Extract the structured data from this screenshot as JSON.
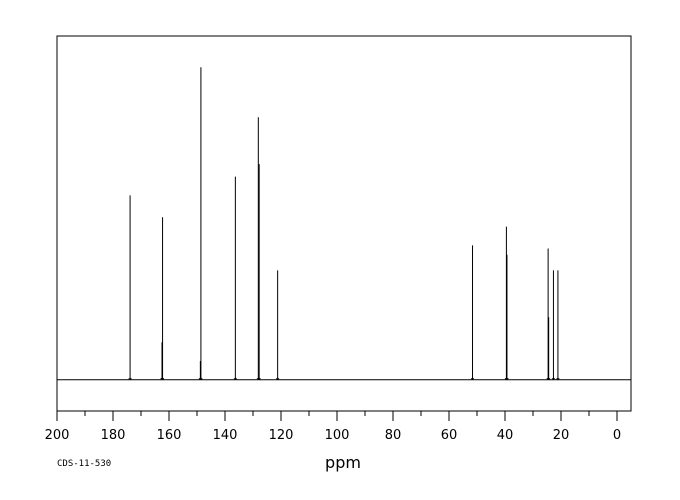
{
  "chart_data": {
    "type": "line",
    "title": "",
    "xlabel": "ppm",
    "ylabel": "",
    "xlim": [
      200,
      -5
    ],
    "ylim": [
      -0.1,
      1.1
    ],
    "x_reversed": true,
    "grid": false,
    "baseline_y": 0,
    "x_ticks": [
      200,
      180,
      160,
      140,
      120,
      100,
      80,
      60,
      40,
      20,
      0
    ],
    "x_tick_labels": [
      "200",
      "180",
      "160",
      "140",
      "120",
      "100",
      "80",
      "60",
      "40",
      "20",
      "0"
    ],
    "x_minor_step": 10,
    "peaks": [
      {
        "ppm": 173.9,
        "intensity": 0.59
      },
      {
        "ppm": 162.5,
        "intensity": 0.12
      },
      {
        "ppm": 162.3,
        "intensity": 0.52
      },
      {
        "ppm": 148.8,
        "intensity": 0.06
      },
      {
        "ppm": 148.6,
        "intensity": 1.0
      },
      {
        "ppm": 136.3,
        "intensity": 0.65
      },
      {
        "ppm": 128.1,
        "intensity": 0.84
      },
      {
        "ppm": 127.8,
        "intensity": 0.69
      },
      {
        "ppm": 121.2,
        "intensity": 0.35
      },
      {
        "ppm": 51.6,
        "intensity": 0.43
      },
      {
        "ppm": 39.5,
        "intensity": 0.49
      },
      {
        "ppm": 39.3,
        "intensity": 0.4
      },
      {
        "ppm": 24.6,
        "intensity": 0.42
      },
      {
        "ppm": 24.4,
        "intensity": 0.2
      },
      {
        "ppm": 22.7,
        "intensity": 0.35
      },
      {
        "ppm": 21.1,
        "intensity": 0.35
      }
    ]
  },
  "footer": {
    "code": "CDS-11-530"
  }
}
